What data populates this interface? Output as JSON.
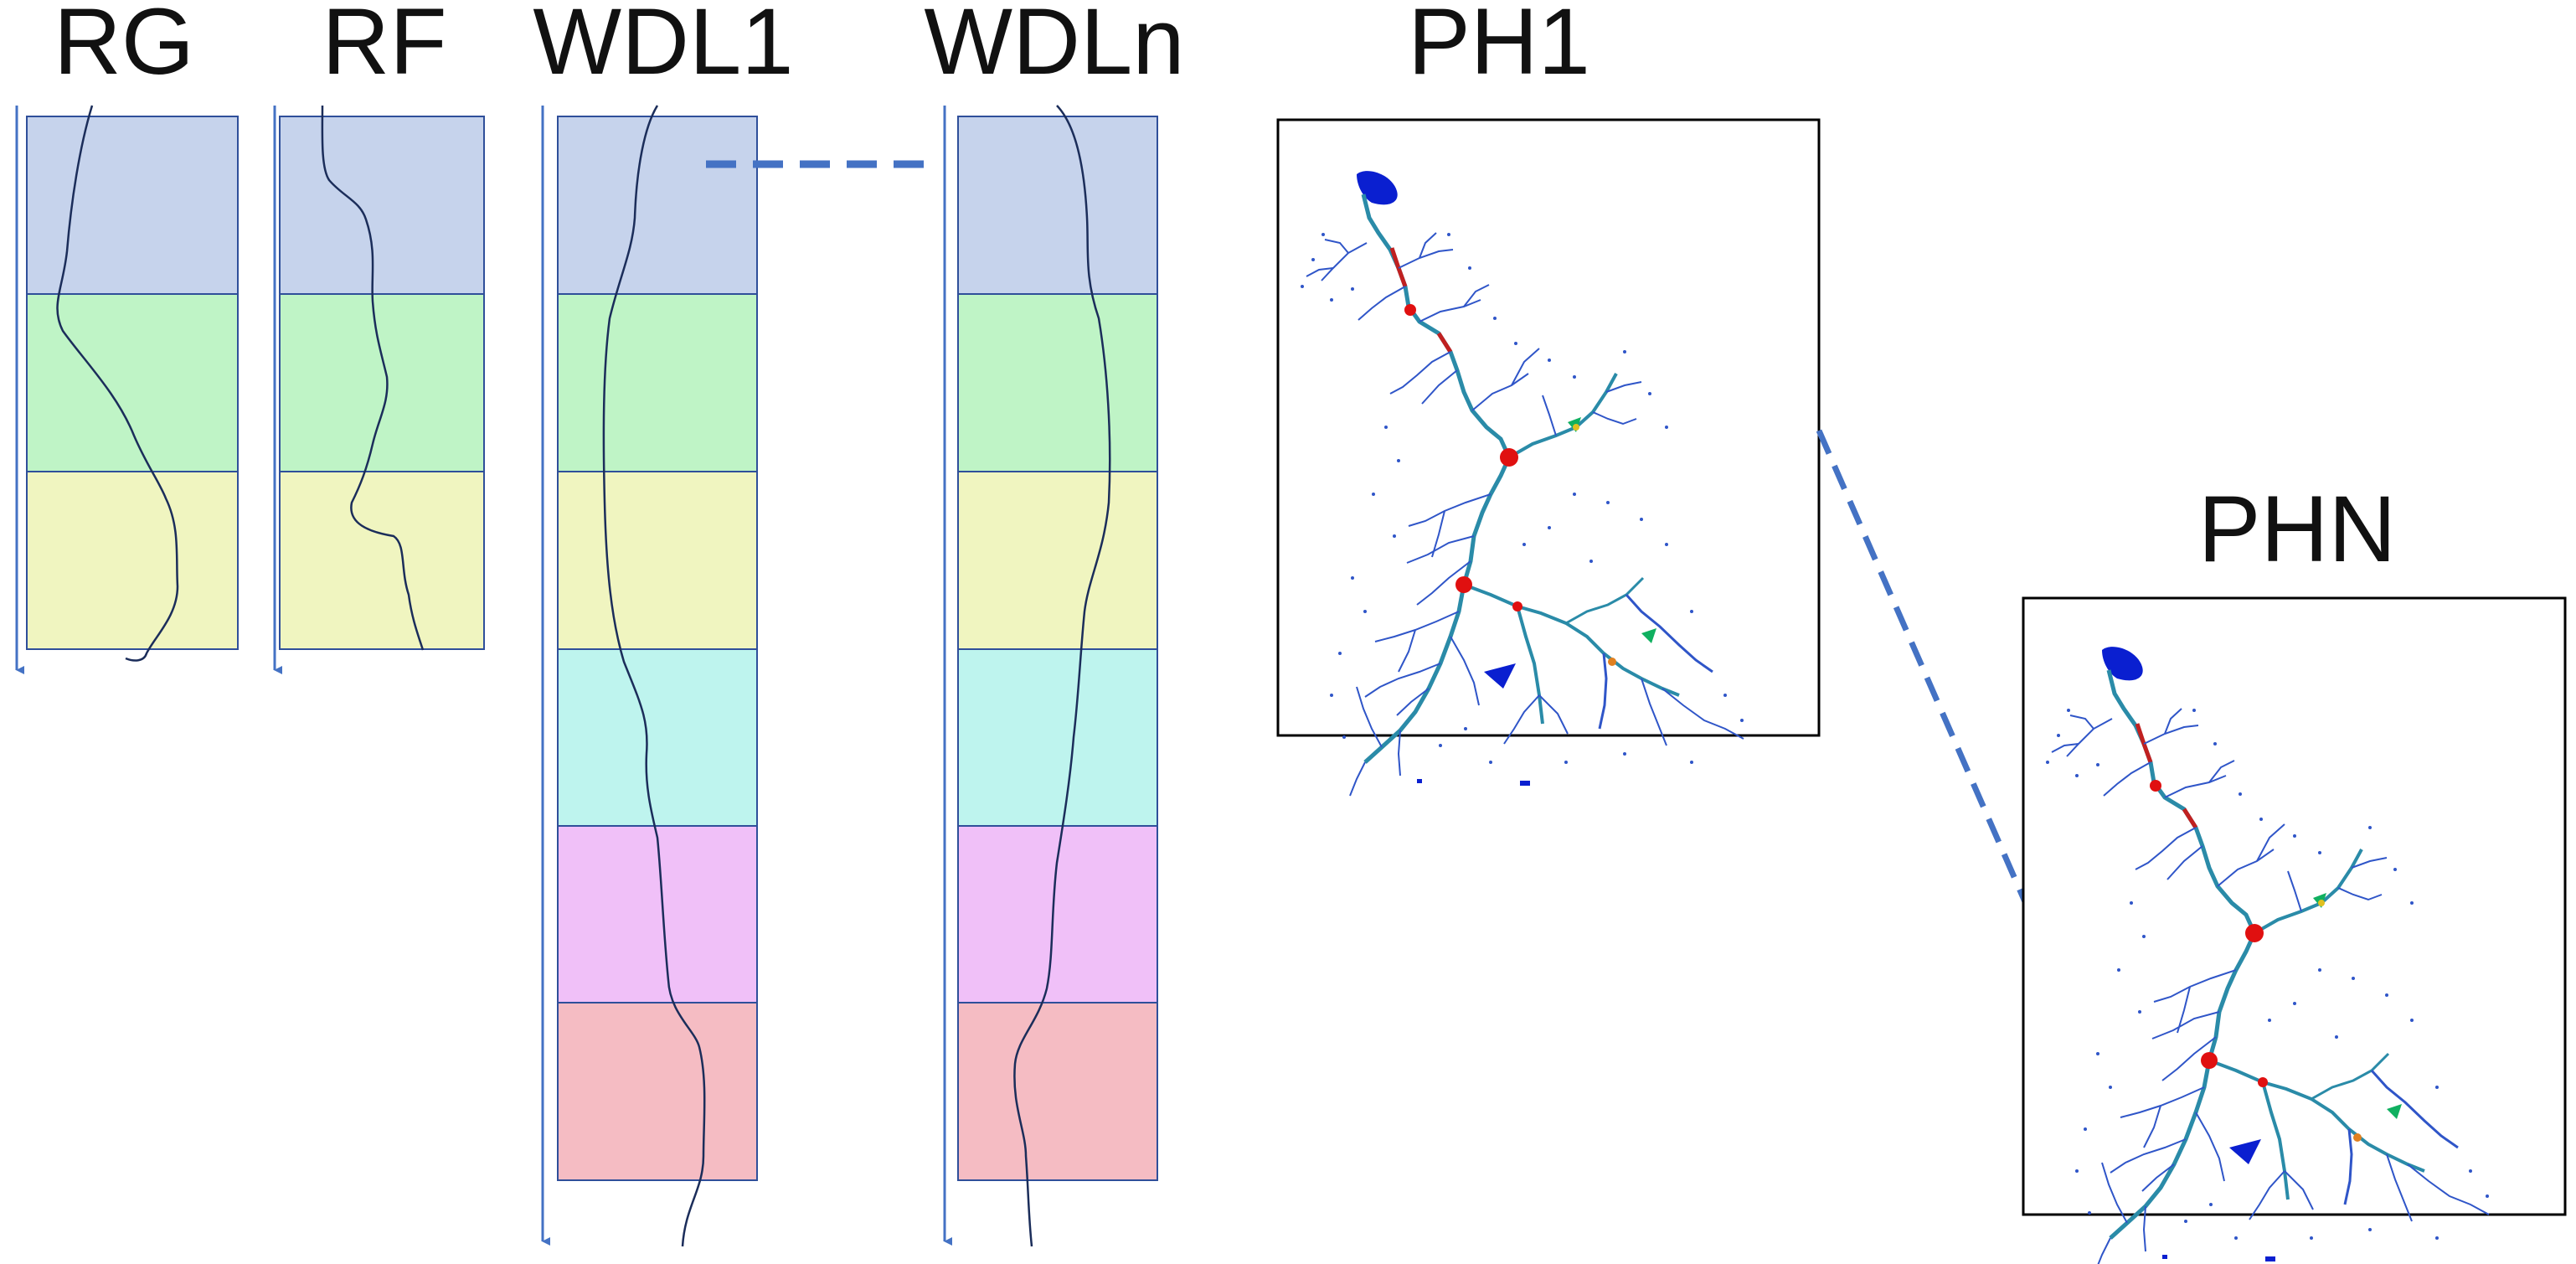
{
  "labels": {
    "rg": "RG",
    "rf": "RF",
    "wdl1": "WDL1",
    "wdln": "WDLn",
    "ph1": "PH1",
    "phn": "PHN"
  },
  "colors": {
    "band_colors": [
      "#c6d3ec",
      "#bff4c6",
      "#f0f5c0",
      "#bef4ee",
      "#f0c0f8",
      "#f5bcc3"
    ],
    "box_border": "#2f4f9a",
    "accent": "#4472c4",
    "trace": "#1b2d5a",
    "river_main": "#2a8ba8",
    "river_branch": "#2f55c8",
    "hotspot": "#e01010",
    "reservoir": "#0a1fd0"
  },
  "icons": {
    "ph1_map": "river-network-map-icon",
    "phn_map": "river-network-map-icon"
  }
}
